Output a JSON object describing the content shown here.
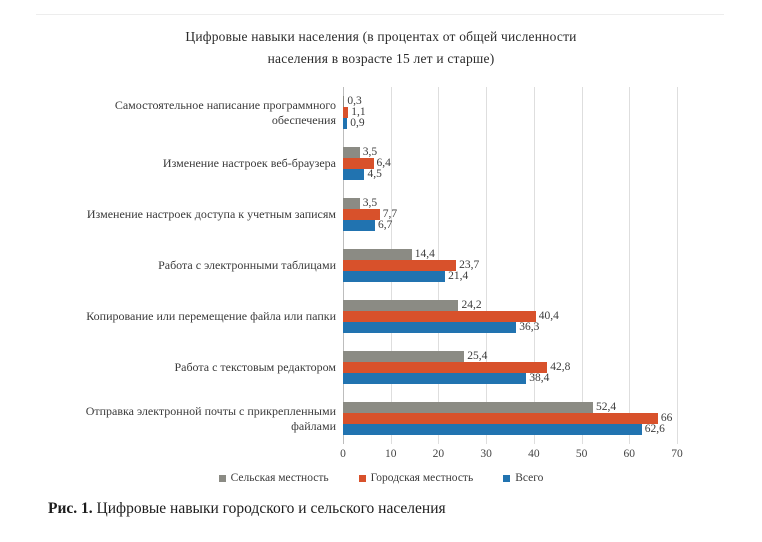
{
  "page": {
    "title_line1": "Цифровые навыки населения (в процентах от общей численности",
    "title_line2": "населения в возрасте 15 лет и старше)",
    "caption_prefix": "Рис. 1.",
    "caption_text": " Цифровые навыки городского и сельского населения"
  },
  "chart_data": {
    "type": "bar",
    "orientation": "horizontal",
    "title": "Цифровые навыки населения (в процентах от общей численности населения в возрасте 15 лет и старше)",
    "categories": [
      "Самостоятельное написание программного обеспечения",
      "Изменение настроек веб-браузера",
      "Изменение настроек доступа к учетным записям",
      "Работа с электронными таблицами",
      "Копирование или перемещение файла или папки",
      "Работа с текстовым редактором",
      "Отправка электронной почты с прикрепленными файлами"
    ],
    "series": [
      {
        "name": "Сельская местность",
        "color": "#8b8b84",
        "values": [
          0.3,
          3.5,
          3.5,
          14.4,
          24.2,
          25.4,
          52.4
        ],
        "labels": [
          "0,3",
          "3,5",
          "3,5",
          "14,4",
          "24,2",
          "25,4",
          "52,4"
        ]
      },
      {
        "name": "Городская местность",
        "color": "#d8512b",
        "values": [
          1.1,
          6.4,
          7.7,
          23.7,
          40.4,
          42.8,
          66
        ],
        "labels": [
          "1,1",
          "6,4",
          "7,7",
          "23,7",
          "40,4",
          "42,8",
          "66"
        ]
      },
      {
        "name": "Всего",
        "color": "#2173b0",
        "values": [
          0.9,
          4.5,
          6.7,
          21.4,
          36.3,
          38.4,
          62.6
        ],
        "labels": [
          "0,9",
          "4,5",
          "6,7",
          "21,4",
          "36,3",
          "38,4",
          "62,6"
        ]
      }
    ],
    "xlim": [
      0,
      70
    ],
    "x_ticks": [
      0,
      10,
      20,
      30,
      40,
      50,
      60,
      70
    ],
    "grid": "vertical gridlines every 10",
    "legend_position": "bottom",
    "value_labels": "outside end of each bar"
  }
}
